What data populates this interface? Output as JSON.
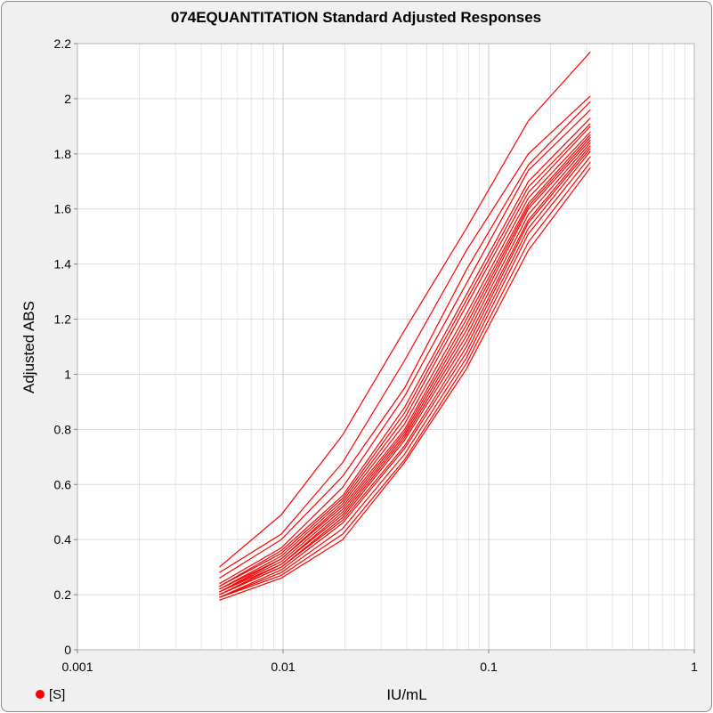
{
  "chart_data": {
    "type": "line",
    "title": "074EQUANTITATION Standard Adjusted Responses",
    "xlabel": "IU/mL",
    "ylabel": "Adjusted ABS",
    "x_scale": "log",
    "xlim": [
      0.001,
      1
    ],
    "ylim": [
      0,
      2.2
    ],
    "x_ticks": [
      "0.001",
      "0.01",
      "0.1",
      "1"
    ],
    "y_ticks": [
      "0",
      "0.2",
      "0.4",
      "0.6",
      "0.8",
      "1",
      "1.2",
      "1.4",
      "1.6",
      "1.8",
      "2",
      "2.2"
    ],
    "grid": true,
    "legend": {
      "position": "bottom-left",
      "label": "[S]",
      "color": "#ff0000"
    },
    "line_color": "#ff0000",
    "x": [
      0.0049,
      0.0098,
      0.0195,
      0.039,
      0.078,
      0.156,
      0.3125
    ],
    "series": [
      {
        "values": [
          0.3,
          0.49,
          0.78,
          1.16,
          1.53,
          1.92,
          2.17
        ]
      },
      {
        "values": [
          0.28,
          0.42,
          0.68,
          1.05,
          1.45,
          1.8,
          2.01
        ]
      },
      {
        "values": [
          0.26,
          0.4,
          0.63,
          0.95,
          1.38,
          1.76,
          1.99
        ]
      },
      {
        "values": [
          0.24,
          0.37,
          0.59,
          0.92,
          1.33,
          1.74,
          1.96
        ]
      },
      {
        "values": [
          0.23,
          0.36,
          0.56,
          0.88,
          1.29,
          1.7,
          1.93
        ]
      },
      {
        "values": [
          0.23,
          0.35,
          0.55,
          0.86,
          1.27,
          1.68,
          1.91
        ]
      },
      {
        "values": [
          0.22,
          0.34,
          0.54,
          0.84,
          1.25,
          1.66,
          1.9
        ]
      },
      {
        "values": [
          0.22,
          0.33,
          0.53,
          0.82,
          1.22,
          1.64,
          1.88
        ]
      },
      {
        "values": [
          0.21,
          0.33,
          0.52,
          0.8,
          1.2,
          1.62,
          1.87
        ]
      },
      {
        "values": [
          0.21,
          0.32,
          0.51,
          0.79,
          1.18,
          1.61,
          1.86
        ]
      },
      {
        "values": [
          0.21,
          0.31,
          0.5,
          0.78,
          1.16,
          1.6,
          1.85
        ]
      },
      {
        "values": [
          0.2,
          0.31,
          0.49,
          0.77,
          1.14,
          1.58,
          1.84
        ]
      },
      {
        "values": [
          0.2,
          0.3,
          0.48,
          0.76,
          1.12,
          1.56,
          1.83
        ]
      },
      {
        "values": [
          0.2,
          0.3,
          0.47,
          0.74,
          1.1,
          1.55,
          1.82
        ]
      },
      {
        "values": [
          0.19,
          0.29,
          0.46,
          0.73,
          1.08,
          1.53,
          1.81
        ]
      },
      {
        "values": [
          0.19,
          0.28,
          0.44,
          0.71,
          1.06,
          1.51,
          1.79
        ]
      },
      {
        "values": [
          0.19,
          0.27,
          0.42,
          0.69,
          1.04,
          1.48,
          1.77
        ]
      },
      {
        "values": [
          0.18,
          0.26,
          0.4,
          0.68,
          1.02,
          1.45,
          1.75
        ]
      }
    ]
  }
}
